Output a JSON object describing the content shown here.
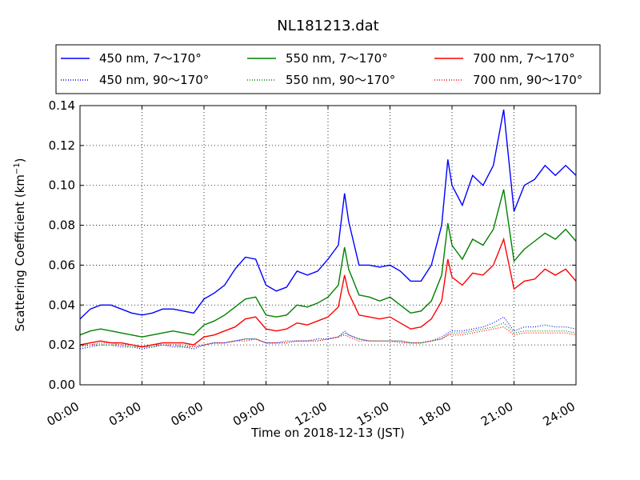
{
  "chart_data": {
    "type": "line",
    "title": "NL181213.dat",
    "xlabel": "Time on 2018-12-13 (JST)",
    "ylabel_main": "Scattering Coefficient (km",
    "ylabel_sup": "−1",
    "ylabel_close": ")",
    "xlim": [
      0,
      24
    ],
    "ylim": [
      0,
      0.14
    ],
    "xticks": [
      0,
      3,
      6,
      9,
      12,
      15,
      18,
      21,
      24
    ],
    "xtick_labels": [
      "00:00",
      "03:00",
      "06:00",
      "09:00",
      "12:00",
      "15:00",
      "18:00",
      "21:00",
      "24:00"
    ],
    "yticks": [
      0,
      0.02,
      0.04,
      0.06,
      0.08,
      0.1,
      0.12,
      0.14
    ],
    "ytick_labels": [
      "0.00",
      "0.02",
      "0.04",
      "0.06",
      "0.08",
      "0.10",
      "0.12",
      "0.14"
    ],
    "grid": true,
    "legend_position": "top, above plot",
    "x": [
      0,
      0.5,
      1,
      1.5,
      2,
      2.5,
      3,
      3.5,
      4,
      4.5,
      5,
      5.5,
      6,
      6.5,
      7,
      7.5,
      8,
      8.5,
      9,
      9.5,
      10,
      10.5,
      11,
      11.5,
      12,
      12.5,
      12.8,
      13,
      13.5,
      14,
      14.5,
      15,
      15.5,
      16,
      16.5,
      17,
      17.5,
      17.8,
      18,
      18.5,
      19,
      19.5,
      20,
      20.5,
      21,
      21.5,
      22,
      22.5,
      23,
      23.5,
      24
    ],
    "series": [
      {
        "name": "450 nm, 7～170°",
        "color": "#0000ff",
        "style": "solid",
        "values": [
          0.033,
          0.038,
          0.04,
          0.04,
          0.038,
          0.036,
          0.035,
          0.036,
          0.038,
          0.038,
          0.037,
          0.036,
          0.043,
          0.046,
          0.05,
          0.058,
          0.064,
          0.063,
          0.05,
          0.047,
          0.049,
          0.057,
          0.055,
          0.057,
          0.063,
          0.07,
          0.096,
          0.082,
          0.06,
          0.06,
          0.059,
          0.06,
          0.057,
          0.052,
          0.052,
          0.06,
          0.08,
          0.113,
          0.1,
          0.09,
          0.105,
          0.1,
          0.11,
          0.138,
          0.087,
          0.1,
          0.103,
          0.11,
          0.105,
          0.11,
          0.105
        ]
      },
      {
        "name": "450 nm, 90～170°",
        "color": "#0000ff",
        "style": "dotted",
        "values": [
          0.018,
          0.019,
          0.02,
          0.02,
          0.019,
          0.019,
          0.018,
          0.019,
          0.02,
          0.019,
          0.019,
          0.018,
          0.02,
          0.021,
          0.021,
          0.022,
          0.023,
          0.023,
          0.021,
          0.021,
          0.022,
          0.022,
          0.022,
          0.023,
          0.023,
          0.024,
          0.027,
          0.025,
          0.023,
          0.022,
          0.022,
          0.022,
          0.022,
          0.021,
          0.021,
          0.022,
          0.024,
          0.026,
          0.027,
          0.027,
          0.028,
          0.029,
          0.031,
          0.034,
          0.027,
          0.029,
          0.029,
          0.03,
          0.029,
          0.029,
          0.028
        ]
      },
      {
        "name": "550 nm, 7～170°",
        "color": "#008000",
        "style": "solid",
        "values": [
          0.025,
          0.027,
          0.028,
          0.027,
          0.026,
          0.025,
          0.024,
          0.025,
          0.026,
          0.027,
          0.026,
          0.025,
          0.03,
          0.032,
          0.035,
          0.039,
          0.043,
          0.044,
          0.035,
          0.034,
          0.035,
          0.04,
          0.039,
          0.041,
          0.044,
          0.05,
          0.069,
          0.058,
          0.045,
          0.044,
          0.042,
          0.044,
          0.04,
          0.036,
          0.037,
          0.042,
          0.055,
          0.081,
          0.07,
          0.063,
          0.073,
          0.07,
          0.078,
          0.098,
          0.062,
          0.068,
          0.072,
          0.076,
          0.073,
          0.078,
          0.072
        ]
      },
      {
        "name": "550 nm, 90～170°",
        "color": "#008000",
        "style": "dotted",
        "values": [
          0.019,
          0.02,
          0.02,
          0.02,
          0.02,
          0.019,
          0.019,
          0.019,
          0.02,
          0.02,
          0.019,
          0.019,
          0.02,
          0.021,
          0.021,
          0.022,
          0.023,
          0.023,
          0.021,
          0.021,
          0.021,
          0.022,
          0.022,
          0.022,
          0.023,
          0.024,
          0.026,
          0.025,
          0.023,
          0.022,
          0.022,
          0.022,
          0.022,
          0.021,
          0.021,
          0.022,
          0.023,
          0.025,
          0.026,
          0.026,
          0.027,
          0.028,
          0.029,
          0.031,
          0.026,
          0.027,
          0.027,
          0.027,
          0.027,
          0.027,
          0.026
        ]
      },
      {
        "name": "700 nm, 7～170°",
        "color": "#ff0000",
        "style": "solid",
        "values": [
          0.02,
          0.021,
          0.022,
          0.021,
          0.021,
          0.02,
          0.019,
          0.02,
          0.021,
          0.021,
          0.021,
          0.02,
          0.024,
          0.025,
          0.027,
          0.029,
          0.033,
          0.034,
          0.028,
          0.027,
          0.028,
          0.031,
          0.03,
          0.032,
          0.034,
          0.039,
          0.055,
          0.046,
          0.035,
          0.034,
          0.033,
          0.034,
          0.031,
          0.028,
          0.029,
          0.033,
          0.042,
          0.063,
          0.054,
          0.05,
          0.056,
          0.055,
          0.06,
          0.073,
          0.048,
          0.052,
          0.053,
          0.058,
          0.055,
          0.058,
          0.052
        ]
      },
      {
        "name": "700 nm, 90～170°",
        "color": "#ff0000",
        "style": "dotted",
        "values": [
          0.02,
          0.02,
          0.021,
          0.021,
          0.02,
          0.02,
          0.019,
          0.02,
          0.02,
          0.02,
          0.02,
          0.019,
          0.02,
          0.021,
          0.021,
          0.022,
          0.022,
          0.023,
          0.021,
          0.021,
          0.021,
          0.022,
          0.022,
          0.022,
          0.023,
          0.024,
          0.025,
          0.024,
          0.022,
          0.022,
          0.022,
          0.022,
          0.021,
          0.021,
          0.021,
          0.022,
          0.023,
          0.025,
          0.025,
          0.025,
          0.026,
          0.027,
          0.028,
          0.029,
          0.025,
          0.026,
          0.026,
          0.026,
          0.026,
          0.026,
          0.025
        ]
      }
    ]
  }
}
